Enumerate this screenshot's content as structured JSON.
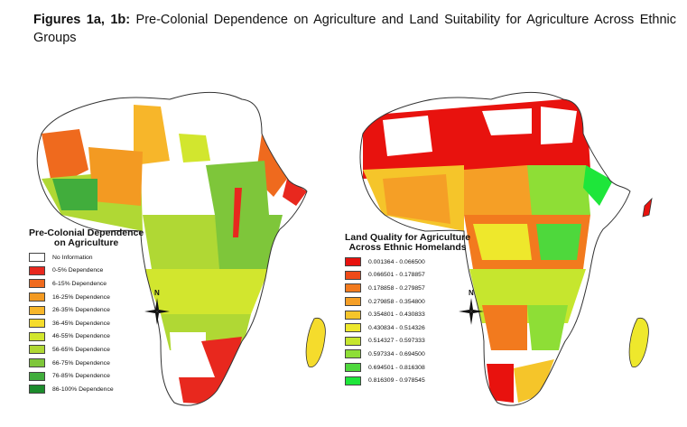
{
  "caption": {
    "prefix": "Figures 1a, 1b:",
    "text": " Pre-Colonial Dependence on Agriculture and Land Suitability for Agriculture Across Ethnic Groups"
  },
  "map_a": {
    "legend_title_line1": "Pre-Colonial Dependence",
    "legend_title_line2": "on Agriculture",
    "legend_items": [
      {
        "label": "No Information",
        "color": "#ffffff"
      },
      {
        "label": "0-5% Dependence",
        "color": "#e8281e"
      },
      {
        "label": "6-15% Dependence",
        "color": "#ef6a1e"
      },
      {
        "label": "16-25% Dependence",
        "color": "#f39a22"
      },
      {
        "label": "26-35% Dependence",
        "color": "#f7b62a"
      },
      {
        "label": "36-45% Dependence",
        "color": "#f5dc2c"
      },
      {
        "label": "46-55% Dependence",
        "color": "#d2e62e"
      },
      {
        "label": "56-65% Dependence",
        "color": "#b0d834"
      },
      {
        "label": "66-75% Dependence",
        "color": "#7ec63a"
      },
      {
        "label": "76-85% Dependence",
        "color": "#41ad3c"
      },
      {
        "label": "86-100% Dependence",
        "color": "#1c8c2c"
      }
    ],
    "compass_label": "N"
  },
  "map_b": {
    "legend_title_line1": "Land Quality for Agriculture",
    "legend_title_line2": "Across Ethnic Homelands",
    "legend_items": [
      {
        "label": "0.001364 - 0.066500",
        "color": "#e8120e"
      },
      {
        "label": "0.066501 - 0.178857",
        "color": "#ef4a18"
      },
      {
        "label": "0.178858 - 0.279857",
        "color": "#f27a1e"
      },
      {
        "label": "0.279858 - 0.354800",
        "color": "#f59f26"
      },
      {
        "label": "0.354801 - 0.430833",
        "color": "#f5c52a"
      },
      {
        "label": "0.430834 - 0.514326",
        "color": "#eee82c"
      },
      {
        "label": "0.514327 - 0.597333",
        "color": "#c6e62e"
      },
      {
        "label": "0.597334 - 0.694500",
        "color": "#8ede36"
      },
      {
        "label": "0.694501 - 0.816308",
        "color": "#4ed83c"
      },
      {
        "label": "0.816309 - 0.978545",
        "color": "#1ee63a"
      }
    ],
    "compass_label": "N"
  }
}
